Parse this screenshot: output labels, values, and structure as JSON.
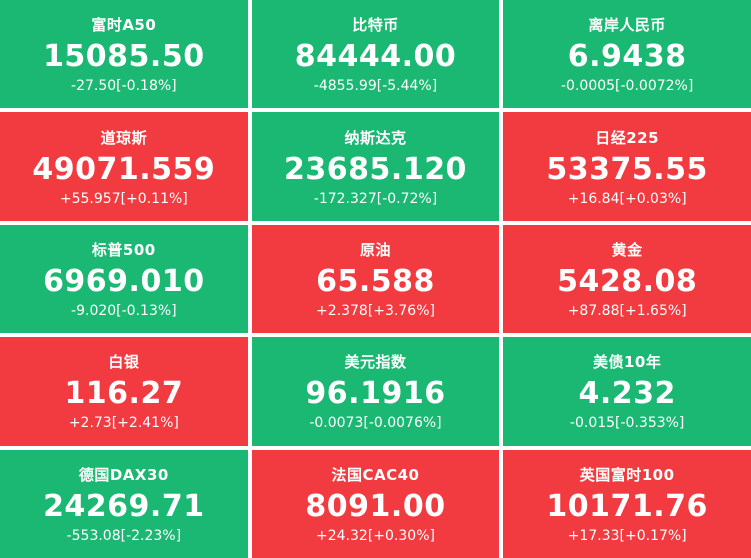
{
  "colors": {
    "up": "#f23b40",
    "down": "#1bb873"
  },
  "tiles": [
    {
      "name": "富时A50",
      "price": "15085.50",
      "change": "-27.50[-0.18%]",
      "dir": "down"
    },
    {
      "name": "比特币",
      "price": "84444.00",
      "change": "-4855.99[-5.44%]",
      "dir": "down"
    },
    {
      "name": "离岸人民币",
      "price": "6.9438",
      "change": "-0.0005[-0.0072%]",
      "dir": "down"
    },
    {
      "name": "道琼斯",
      "price": "49071.559",
      "change": "+55.957[+0.11%]",
      "dir": "up"
    },
    {
      "name": "纳斯达克",
      "price": "23685.120",
      "change": "-172.327[-0.72%]",
      "dir": "down"
    },
    {
      "name": "日经225",
      "price": "53375.55",
      "change": "+16.84[+0.03%]",
      "dir": "up"
    },
    {
      "name": "标普500",
      "price": "6969.010",
      "change": "-9.020[-0.13%]",
      "dir": "down"
    },
    {
      "name": "原油",
      "price": "65.588",
      "change": "+2.378[+3.76%]",
      "dir": "up"
    },
    {
      "name": "黄金",
      "price": "5428.08",
      "change": "+87.88[+1.65%]",
      "dir": "up"
    },
    {
      "name": "白银",
      "price": "116.27",
      "change": "+2.73[+2.41%]",
      "dir": "up"
    },
    {
      "name": "美元指数",
      "price": "96.1916",
      "change": "-0.0073[-0.0076%]",
      "dir": "down"
    },
    {
      "name": "美债10年",
      "price": "4.232",
      "change": "-0.015[-0.353%]",
      "dir": "down"
    },
    {
      "name": "德国DAX30",
      "price": "24269.71",
      "change": "-553.08[-2.23%]",
      "dir": "down"
    },
    {
      "name": "法国CAC40",
      "price": "8091.00",
      "change": "+24.32[+0.30%]",
      "dir": "up"
    },
    {
      "name": "英国富时100",
      "price": "10171.76",
      "change": "+17.33[+0.17%]",
      "dir": "up"
    }
  ]
}
